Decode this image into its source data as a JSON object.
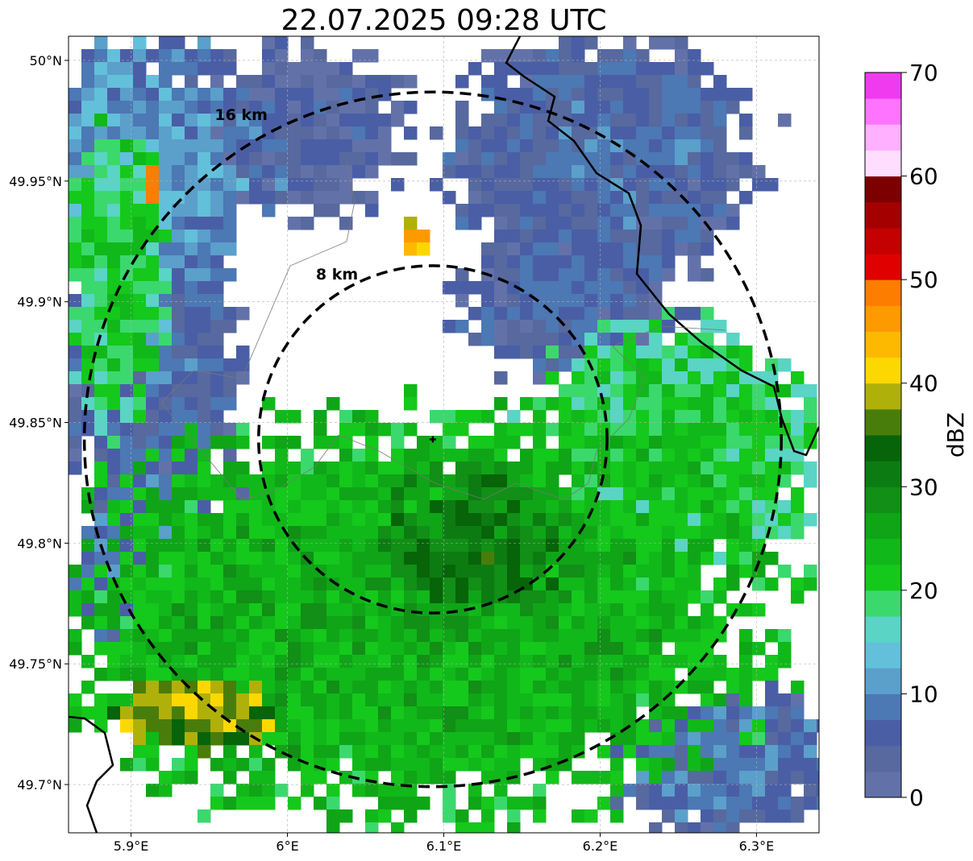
{
  "title": "22.07.2025 09:28 UTC",
  "map_extent": {
    "lon": [
      5.86,
      6.34
    ],
    "lat": [
      49.68,
      50.01
    ]
  },
  "radar_site": {
    "lon": 6.093,
    "lat": 49.843
  },
  "range_rings": [
    {
      "label": "8 km",
      "radius_km": 8
    },
    {
      "label": "16 km",
      "radius_km": 16
    }
  ],
  "lon_ticks": [
    {
      "value": 5.9,
      "label": "5.9°E"
    },
    {
      "value": 6.0,
      "label": "6°E"
    },
    {
      "value": 6.1,
      "label": "6.1°E"
    },
    {
      "value": 6.2,
      "label": "6.2°E"
    },
    {
      "value": 6.3,
      "label": "6.3°E"
    }
  ],
  "lat_ticks": [
    {
      "value": 50.0,
      "label": "50°N"
    },
    {
      "value": 49.95,
      "label": "49.95°N"
    },
    {
      "value": 49.9,
      "label": "49.9°N"
    },
    {
      "value": 49.85,
      "label": "49.85°N"
    },
    {
      "value": 49.8,
      "label": "49.8°N"
    },
    {
      "value": 49.75,
      "label": "49.75°N"
    },
    {
      "value": 49.7,
      "label": "49.7°N"
    }
  ],
  "colorbar": {
    "label": "dBZ",
    "min": 0,
    "max": 70,
    "tick_labels": [
      "0",
      "10",
      "20",
      "30",
      "40",
      "50",
      "60",
      "70"
    ],
    "colors": [
      "#6272a8",
      "#57699e",
      "#4a5ea6",
      "#4c78b4",
      "#5b9fcb",
      "#62c0da",
      "#5ad4c4",
      "#3bd86d",
      "#15c81c",
      "#11b81a",
      "#0fa517",
      "#118f16",
      "#0c7c12",
      "#076409",
      "#497d0b",
      "#b0b00a",
      "#fdd800",
      "#fdb900",
      "#fd9a00",
      "#fd7d00",
      "#e00000",
      "#c40000",
      "#a40000",
      "#7c0000",
      "#ffddff",
      "#ffb0ff",
      "#ff74ff",
      "#f03af0"
    ]
  },
  "palette": {
    "ring": "#000000",
    "border": "#000000",
    "grid": "#b0b0b0"
  },
  "echo_regions": [
    {
      "name": "northwest-light-echoes",
      "lon": 5.9,
      "lat": 49.95,
      "r_lon": 0.08,
      "r_lat": 0.06,
      "level": 12
    },
    {
      "name": "north-light-echoes",
      "lon": 6.0,
      "lat": 49.97,
      "r_lon": 0.08,
      "r_lat": 0.035,
      "level": 6
    },
    {
      "name": "northeast-light-echoes",
      "lon": 6.2,
      "lat": 49.96,
      "r_lon": 0.1,
      "r_lat": 0.05,
      "level": 8
    },
    {
      "name": "east-light-echoes",
      "lon": 6.18,
      "lat": 49.9,
      "r_lon": 0.07,
      "r_lat": 0.03,
      "level": 7
    },
    {
      "name": "west-light-echoes",
      "lon": 5.91,
      "lat": 49.87,
      "r_lon": 0.06,
      "r_lat": 0.05,
      "level": 8
    },
    {
      "name": "western-green-band",
      "lon": 5.89,
      "lat": 49.91,
      "r_lon": 0.03,
      "r_lat": 0.06,
      "level": 22
    },
    {
      "name": "southwest-edge-echoes",
      "lon": 5.92,
      "lat": 49.79,
      "r_lon": 0.06,
      "r_lat": 0.04,
      "level": 10
    },
    {
      "name": "southern-rain-band",
      "lon": 6.08,
      "lat": 49.77,
      "r_lon": 0.22,
      "r_lat": 0.08,
      "level": 26
    },
    {
      "name": "central-core",
      "lon": 6.12,
      "lat": 49.8,
      "r_lon": 0.06,
      "r_lat": 0.03,
      "level": 32
    },
    {
      "name": "eastern-green-band",
      "lon": 6.25,
      "lat": 49.84,
      "r_lon": 0.09,
      "r_lat": 0.05,
      "level": 22
    },
    {
      "name": "southeast-light-echoes",
      "lon": 6.28,
      "lat": 49.71,
      "r_lon": 0.07,
      "r_lat": 0.03,
      "level": 9
    },
    {
      "name": "southwest-strong-cell",
      "lon": 5.94,
      "lat": 49.73,
      "r_lon": 0.05,
      "r_lat": 0.015,
      "level": 40
    },
    {
      "name": "northwest-hot-spot",
      "lon": 5.915,
      "lat": 49.95,
      "r_lon": 0.006,
      "r_lat": 0.008,
      "level": 52
    },
    {
      "name": "north-hot-spot",
      "lon": 6.085,
      "lat": 49.925,
      "r_lon": 0.01,
      "r_lat": 0.008,
      "level": 45
    }
  ]
}
